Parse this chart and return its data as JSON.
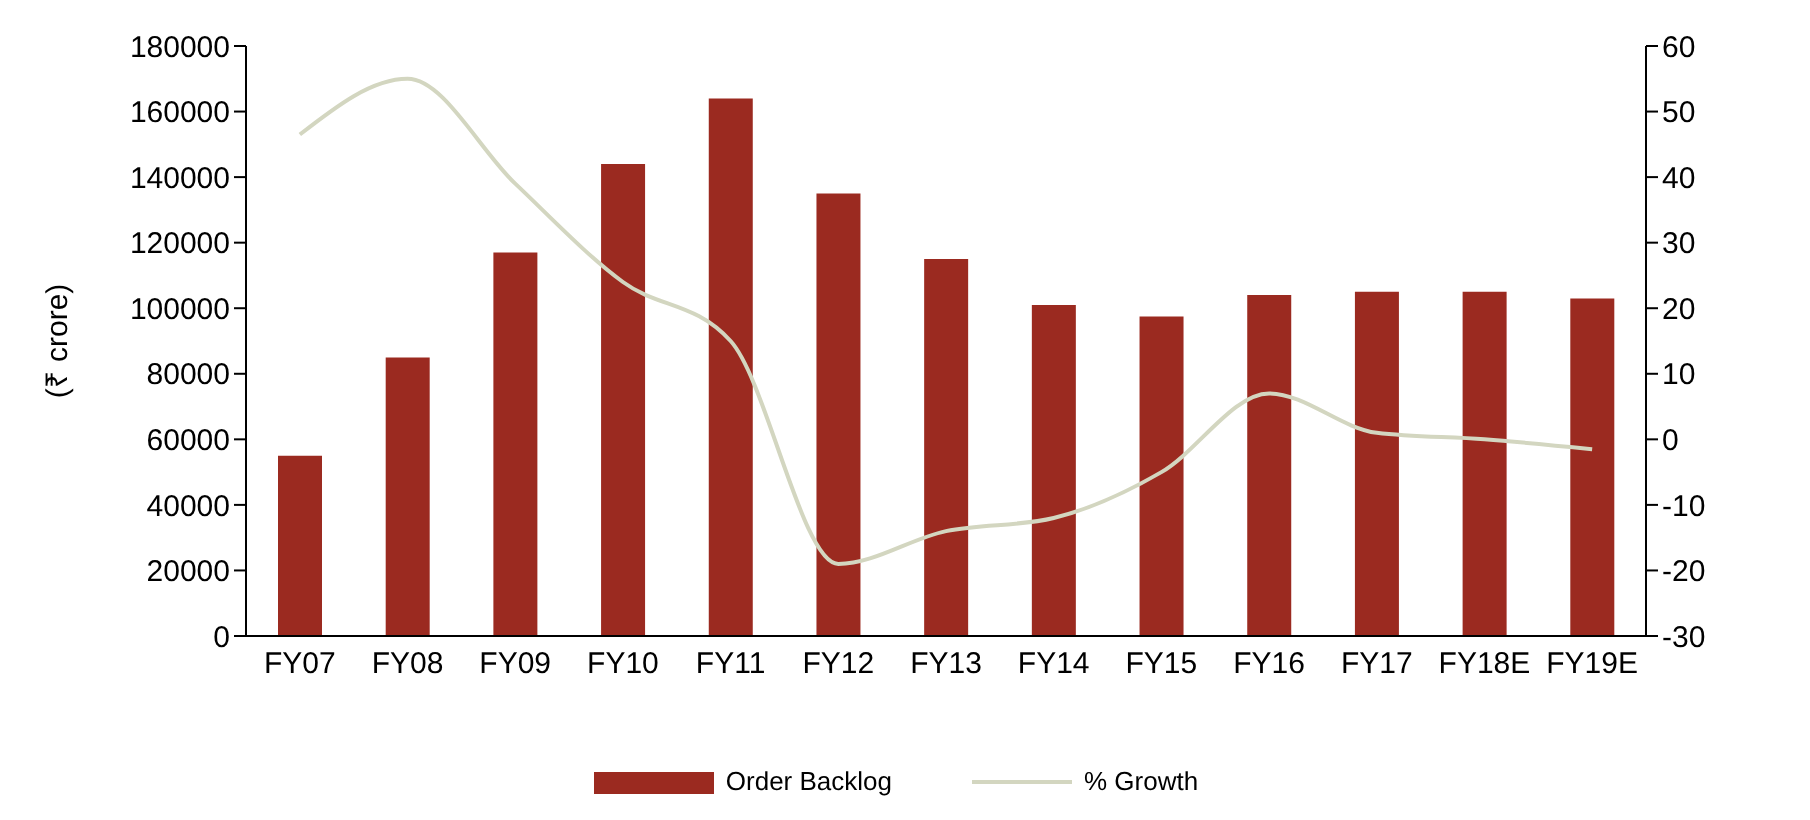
{
  "chart_data": {
    "type": "bar",
    "ylabel": "(₹ crore)",
    "categories": [
      "FY07",
      "FY08",
      "FY09",
      "FY10",
      "FY11",
      "FY12",
      "FY13",
      "FY14",
      "FY15",
      "FY16",
      "FY17",
      "FY18E",
      "FY19E"
    ],
    "series": [
      {
        "name": "Order Backlog",
        "color": "#9b2a20",
        "values": [
          55000,
          85000,
          117000,
          144000,
          164000,
          135000,
          115000,
          101000,
          97500,
          104000,
          105000,
          105000,
          103000
        ]
      },
      {
        "name": "% Growth",
        "type": "line",
        "axis": "y2",
        "color": "#d3d6c0",
        "values": [
          46.5,
          55,
          39,
          24,
          15,
          -19,
          -14,
          -12,
          -5,
          7,
          1,
          0,
          -1.5
        ]
      }
    ],
    "ylim": [
      0,
      180000
    ],
    "yticks": [
      0,
      20000,
      40000,
      60000,
      80000,
      100000,
      120000,
      140000,
      160000,
      180000
    ],
    "y2lim": [
      -30,
      60
    ],
    "y2ticks": [
      -30,
      -20,
      -10,
      0,
      10,
      20,
      30,
      40,
      50,
      60
    ],
    "grid": false,
    "legend": "bottom",
    "marker": "none",
    "line_style": "solid"
  }
}
